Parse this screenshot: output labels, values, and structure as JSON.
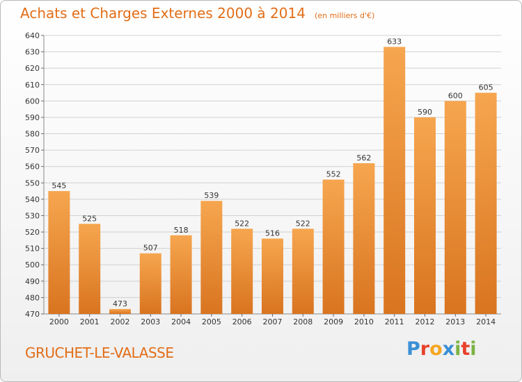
{
  "chart_data": {
    "type": "bar",
    "title": "Achats et Charges Externes 2000 à 2014",
    "subtitle": "(en milliers d'€)",
    "categories": [
      "2000",
      "2001",
      "2002",
      "2003",
      "2004",
      "2005",
      "2006",
      "2007",
      "2008",
      "2009",
      "2010",
      "2011",
      "2012",
      "2013",
      "2014"
    ],
    "values": [
      545,
      525,
      473,
      507,
      518,
      539,
      522,
      516,
      522,
      552,
      562,
      633,
      590,
      600,
      605
    ],
    "ylim": [
      470,
      640
    ],
    "yticks": [
      470,
      480,
      490,
      500,
      510,
      520,
      530,
      540,
      550,
      560,
      570,
      580,
      590,
      600,
      610,
      620,
      630,
      640
    ],
    "grid": true,
    "xlabel": "",
    "ylabel": ""
  },
  "commune": "GRUCHET-LE-VALASSE",
  "logo": {
    "letters": [
      "P",
      "r",
      "o",
      "x",
      "i",
      "t",
      "i"
    ],
    "colors": [
      "#3a8fd6",
      "#e8412c",
      "#f5a623",
      "#3a8fd6",
      "#7cb342",
      "#e8412c",
      "#7cb342"
    ]
  },
  "colors": {
    "bar_light": "#f6a64f",
    "bar_dark": "#d97420",
    "title": "#e26d16",
    "grid": "#d0d0d0"
  }
}
